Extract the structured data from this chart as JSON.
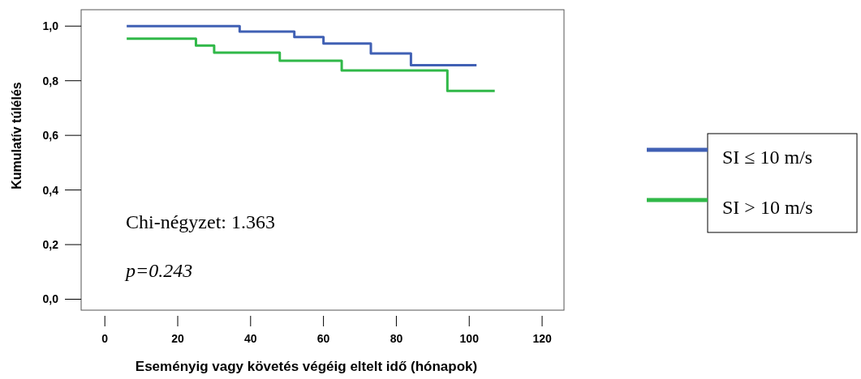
{
  "chart_data": {
    "type": "step",
    "xlabel": "Eseményig vagy követés végéig eltelt idő (hónapok)",
    "ylabel": "Kumulatív túlélés",
    "xlim": [
      -6.5,
      126
    ],
    "xticks": [
      0,
      20,
      40,
      60,
      80,
      100,
      120
    ],
    "ylim": [
      -0.04,
      1.06
    ],
    "yticks": [
      {
        "value": 0,
        "label": "0,0"
      },
      {
        "value": 0.2,
        "label": "0,2"
      },
      {
        "value": 0.4,
        "label": "0,4"
      },
      {
        "value": 0.6,
        "label": "0,6"
      },
      {
        "value": 0.8,
        "label": "0,8"
      },
      {
        "value": 1,
        "label": "1,0"
      }
    ],
    "series": [
      {
        "name": "SI ≤ 10 m/s",
        "color": "#4060b4",
        "x": [
          6,
          37,
          52,
          60,
          73,
          84,
          102
        ],
        "values": [
          1.0,
          0.98,
          0.96,
          0.936,
          0.9,
          0.857,
          0.857
        ]
      },
      {
        "name": "SI > 10 m/s",
        "color": "#30b848",
        "x": [
          6,
          25,
          30,
          48,
          65,
          94,
          107
        ],
        "values": [
          0.954,
          0.929,
          0.903,
          0.873,
          0.838,
          0.763,
          0.763
        ]
      }
    ],
    "annotations": [
      "Chi-négyzet: 1.363",
      "p=0.243"
    ],
    "legend": "right",
    "grid": false,
    "marker": "none",
    "line_style": "solid"
  }
}
